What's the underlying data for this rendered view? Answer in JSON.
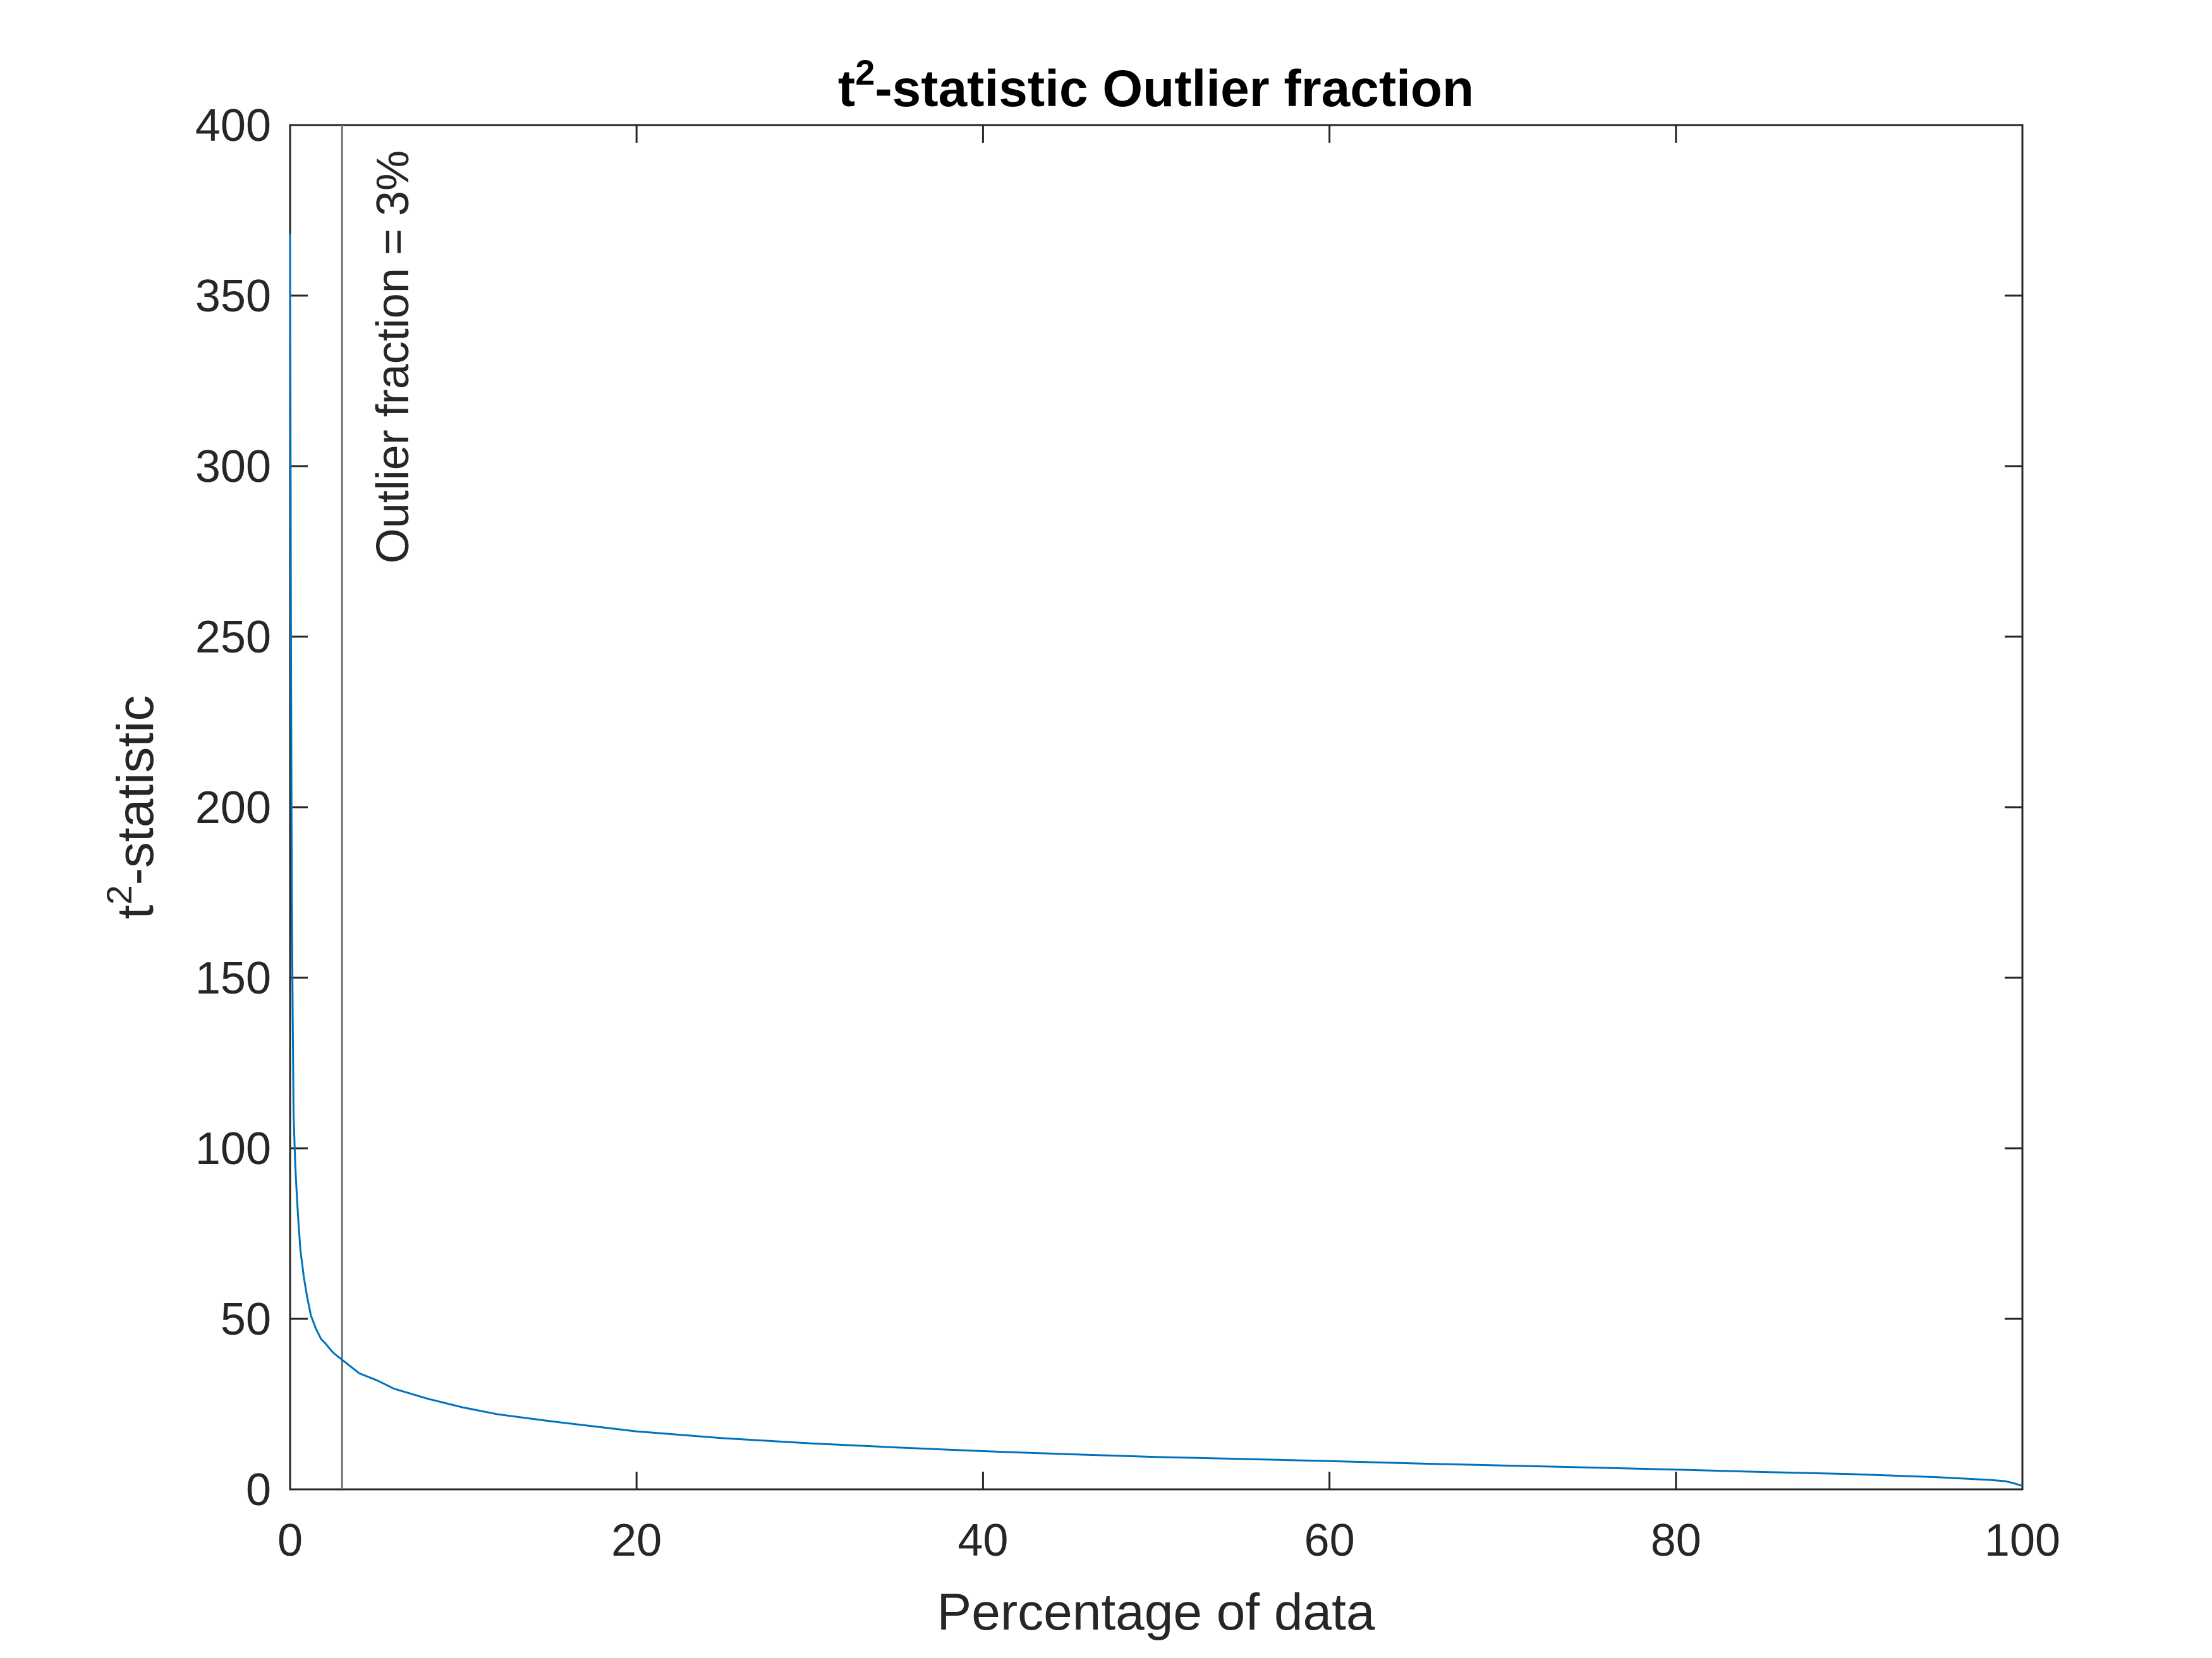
{
  "chart_data": {
    "type": "line",
    "title": {
      "prefix": "t",
      "superscript": "2",
      "suffix": "-statistic Outlier fraction"
    },
    "xlabel": "Percentage of data",
    "ylabel": {
      "prefix": "t",
      "superscript": "2",
      "suffix": "-statistic"
    },
    "xlim": [
      0,
      100
    ],
    "ylim": [
      0,
      400
    ],
    "xticks": [
      0,
      20,
      40,
      60,
      80,
      100
    ],
    "yticks": [
      0,
      50,
      100,
      150,
      200,
      250,
      300,
      350,
      400
    ],
    "grid": false,
    "series": [
      {
        "color": "#0072BD",
        "x": [
          0,
          0.05,
          0.1,
          0.15,
          0.2,
          0.3,
          0.4,
          0.5,
          0.6,
          0.8,
          1.0,
          1.2,
          1.5,
          1.8,
          2.0,
          2.5,
          3.0,
          3.5,
          4.0,
          5.0,
          6.0,
          7.0,
          8.0,
          10,
          12,
          15,
          20,
          25,
          30,
          35,
          40,
          45,
          50,
          55,
          60,
          65,
          70,
          75,
          80,
          85,
          90,
          95,
          98,
          99,
          99.5,
          100
        ],
        "y": [
          368,
          250,
          175,
          140,
          110,
          95,
          85,
          77,
          70,
          62,
          56,
          51,
          47,
          44,
          43,
          40,
          38,
          36,
          34,
          32,
          29.5,
          28,
          26.5,
          24,
          22,
          20,
          17,
          15,
          13.5,
          12.3,
          11.2,
          10.3,
          9.5,
          8.9,
          8.3,
          7.6,
          7.0,
          6.4,
          5.8,
          5.1,
          4.5,
          3.6,
          2.8,
          2.4,
          1.8,
          1.0
        ]
      }
    ],
    "annotations": [
      {
        "type": "vertical-line",
        "x": 3,
        "color": "#6e6e6e",
        "label": "Outlier fraction = 3%"
      }
    ]
  }
}
